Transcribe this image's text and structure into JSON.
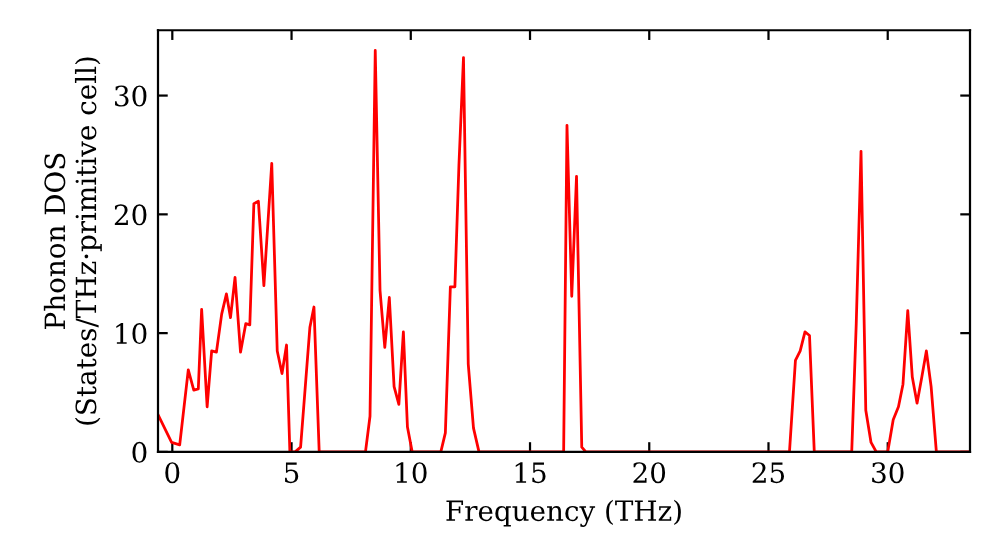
{
  "chart_data": {
    "type": "line",
    "xlabel": "Frequency (THz)",
    "ylabel": "Phonon DOS\n(States/THz·primitive cell)",
    "xlim": [
      -0.6,
      33.45
    ],
    "ylim": [
      0,
      35.5
    ],
    "xticks": [
      0,
      5,
      10,
      15,
      20,
      25,
      30
    ],
    "yticks": [
      0,
      10,
      20,
      30
    ],
    "grid": false,
    "legend": false,
    "marker": "none",
    "line_style": "solid",
    "series": [
      {
        "color": "#ff0000",
        "x": [
          -0.59,
          -0.03,
          0.31,
          0.67,
          0.9,
          1.09,
          1.23,
          1.46,
          1.65,
          1.85,
          2.07,
          2.27,
          2.44,
          2.63,
          2.86,
          3.08,
          3.25,
          3.42,
          3.61,
          3.84,
          4.17,
          4.4,
          4.6,
          4.79,
          4.93,
          5.15,
          5.38,
          5.77,
          5.94,
          6.16,
          8.1,
          8.29,
          8.51,
          8.71,
          8.91,
          9.1,
          9.3,
          9.5,
          9.69,
          9.86,
          10.06,
          11.26,
          11.45,
          11.66,
          11.85,
          12.02,
          12.21,
          12.41,
          12.63,
          12.86,
          16.41,
          16.55,
          16.75,
          16.95,
          17.17,
          17.34,
          25.88,
          26.13,
          26.33,
          26.53,
          26.72,
          26.92,
          28.49,
          28.68,
          28.88,
          29.08,
          29.3,
          29.52,
          30.0,
          30.23,
          30.45,
          30.64,
          30.84,
          31.03,
          31.23,
          31.43,
          31.62,
          31.82,
          32.04,
          33.45
        ],
        "values": [
          3.1,
          0.8,
          0.6,
          6.9,
          5.2,
          5.3,
          12.0,
          3.8,
          8.5,
          8.4,
          11.6,
          13.3,
          11.3,
          14.7,
          8.4,
          10.8,
          10.7,
          20.9,
          21.1,
          14.0,
          24.3,
          8.5,
          6.6,
          9.0,
          0,
          0,
          0.4,
          10.5,
          12.2,
          0,
          0,
          3.0,
          33.8,
          13.6,
          8.8,
          13.0,
          5.5,
          4.0,
          10.1,
          2.1,
          0,
          0,
          1.6,
          13.9,
          13.9,
          24.2,
          33.2,
          7.4,
          2.0,
          0,
          0,
          27.5,
          13.1,
          23.2,
          0.4,
          0,
          0,
          7.7,
          8.5,
          10.1,
          9.8,
          0,
          0,
          10.8,
          25.3,
          3.5,
          0.8,
          0,
          0,
          2.7,
          3.8,
          5.7,
          11.9,
          6.3,
          4.1,
          6.3,
          8.5,
          5.5,
          0,
          0
        ]
      }
    ]
  }
}
